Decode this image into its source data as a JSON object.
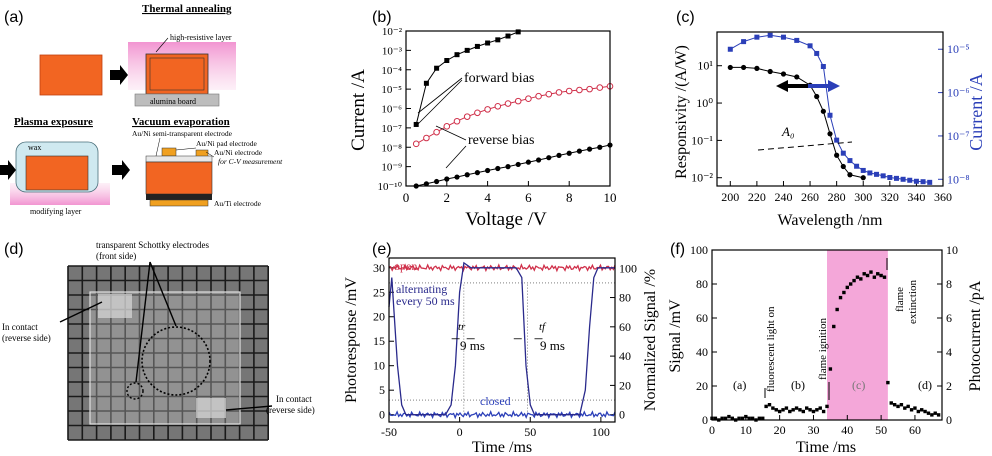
{
  "panels": {
    "a": {
      "label": "(a)",
      "thermal_annealing": "Thermal annealing",
      "high_resistive_layer": "high-resistive layer",
      "alumina_board": "alumina board",
      "plasma_exposure": "Plasma exposure",
      "wax": "wax",
      "modifying_layer": "modifying layer",
      "vacuum_evaporation": "Vacuum evaporation",
      "electrode1": "Au/Ni semi-transparent electrode",
      "electrode2": "Au/Ni pad electrode",
      "electrode3a": "Au/Ni electrode",
      "electrode3b": "for C-V measurement",
      "electrode4": "Au/Ti electrode"
    },
    "d": {
      "label": "(d)",
      "schottky_1": "transparent Schottky electrodes",
      "schottky_2": "(front side)",
      "contact_left_1": "In contact",
      "contact_left_2": "(reverse side)",
      "contact_right_1": "In contact",
      "contact_right_2": "(reverse side)"
    }
  },
  "colors": {
    "black": "#000000",
    "red": "#d0304a",
    "blue": "#2b3fb8",
    "navy": "#2a2a8c",
    "pink": "#f089cc",
    "orange": "#f26522"
  },
  "chart_data": [
    {
      "id": "b",
      "label": "(b)",
      "type": "scatter",
      "yscale": "log",
      "xlabel": "Voltage /V",
      "ylabel": "Current /A",
      "xlim": [
        0,
        10
      ],
      "ylim": [
        1e-10,
        0.01
      ],
      "xticks": [
        0,
        2,
        4,
        6,
        8,
        10
      ],
      "yticks": [
        "10⁻²",
        "10⁻³",
        "10⁻⁴",
        "10⁻⁵",
        "10⁻⁶",
        "10⁻⁷",
        "10⁻⁸",
        "10⁻⁹",
        "10⁻¹⁰"
      ],
      "annotations": [
        "forward bias",
        "reverse bias"
      ],
      "series": [
        {
          "name": "forward bias",
          "color": "#000000",
          "marker": "filled-square",
          "x": [
            0.5,
            1,
            1.5,
            2,
            2.5,
            3,
            3.5,
            4,
            4.5,
            5,
            5.5
          ],
          "y": [
            1.5e-07,
            2e-05,
            0.00012,
            0.0003,
            0.0006,
            0.001,
            0.0016,
            0.0024,
            0.0035,
            0.0055,
            0.009
          ]
        },
        {
          "name": "reverse bias (red)",
          "color": "#d0304a",
          "marker": "open-circle",
          "x": [
            0.5,
            1,
            1.5,
            2,
            2.5,
            3,
            3.5,
            4,
            4.5,
            5,
            5.5,
            6,
            6.5,
            7,
            7.5,
            8,
            8.5,
            9,
            9.5,
            10
          ],
          "y": [
            1.5e-08,
            3e-08,
            6e-08,
            1.2e-07,
            2.2e-07,
            3.8e-07,
            6e-07,
            9e-07,
            1.3e-06,
            1.8e-06,
            2.4e-06,
            3.2e-06,
            4.3e-06,
            5.5e-06,
            6.8e-06,
            8e-06,
            9e-06,
            1e-05,
            1.2e-05,
            1.4e-05
          ]
        },
        {
          "name": "reverse bias (black)",
          "color": "#000000",
          "marker": "filled-circle",
          "x": [
            0.5,
            1,
            1.5,
            2,
            2.5,
            3,
            3.5,
            4,
            4.5,
            5,
            5.5,
            6,
            6.5,
            7,
            7.5,
            8,
            8.5,
            9,
            9.5,
            10
          ],
          "y": [
            1e-10,
            1.3e-10,
            1.7e-10,
            2.3e-10,
            2.9e-10,
            3.8e-10,
            4.9e-10,
            6.3e-10,
            8e-10,
            1e-09,
            1.3e-09,
            1.7e-09,
            2.2e-09,
            2.9e-09,
            3.8e-09,
            4.9e-09,
            6.3e-09,
            8e-09,
            1e-08,
            1.3e-08
          ]
        }
      ]
    },
    {
      "id": "c",
      "label": "(c)",
      "type": "line",
      "yscale": "log",
      "xlabel": "Wavelength /nm",
      "ylabel": "Responsivity /(A/W)",
      "y2label": "Current /A",
      "xlim": [
        190,
        360
      ],
      "ylim": [
        0.006,
        80
      ],
      "y2lim": [
        7e-09,
        2.5e-05
      ],
      "xticks": [
        200,
        220,
        240,
        260,
        280,
        300,
        320,
        340,
        360
      ],
      "yticks": [
        "10¹",
        "10⁰",
        "10⁻¹",
        "10⁻²"
      ],
      "y2ticks": [
        "10⁻⁵",
        "10⁻⁶",
        "10⁻⁷",
        "10⁻⁸"
      ],
      "annotations": [
        "A₀"
      ],
      "series": [
        {
          "name": "responsivity",
          "axis": "left",
          "color": "#000000",
          "marker": "filled-circle",
          "x": [
            200,
            210,
            220,
            230,
            240,
            250,
            260,
            265,
            270,
            275,
            280,
            285,
            290,
            300
          ],
          "y": [
            9,
            9,
            8.5,
            7,
            6,
            5,
            3,
            1.5,
            0.6,
            0.15,
            0.04,
            0.02,
            0.012,
            0.01
          ]
        },
        {
          "name": "current",
          "axis": "right",
          "color": "#2b3fb8",
          "marker": "filled-square",
          "x": [
            200,
            210,
            220,
            230,
            240,
            250,
            260,
            265,
            270,
            275,
            280,
            285,
            290,
            295,
            300,
            305,
            310,
            315,
            320,
            325,
            330,
            335,
            340,
            345,
            350
          ],
          "y": [
            1e-05,
            1.5e-05,
            1.9e-05,
            2.1e-05,
            1.9e-05,
            1.6e-05,
            1.2e-05,
            8e-06,
            4e-06,
            3e-07,
            8e-08,
            4e-08,
            2.7e-08,
            2e-08,
            1.6e-08,
            1.4e-08,
            1.3e-08,
            1.2e-08,
            1.1e-08,
            1.05e-08,
            1e-08,
            9.5e-09,
            9e-09,
            8.8e-09,
            8.5e-09
          ]
        }
      ]
    },
    {
      "id": "e",
      "label": "(e)",
      "type": "line",
      "xlabel": "Time /ms",
      "ylabel": "Photoresponse /mV",
      "y2label": "Normalized Signal /%",
      "xlim": [
        -50,
        110
      ],
      "ylim": [
        -1.5,
        32
      ],
      "y2lim": [
        -5,
        107
      ],
      "xticks": [
        -50,
        0,
        50,
        100
      ],
      "yticks": [
        0,
        5,
        10,
        15,
        20,
        25,
        30
      ],
      "y2ticks": [
        0,
        20,
        40,
        60,
        80,
        100
      ],
      "annotations": [
        "open",
        "alternating",
        "every 50 ms",
        "closed",
        "tr",
        "tf",
        "9 ms",
        "9 ms"
      ],
      "series": [
        {
          "name": "open",
          "color": "#d0304a",
          "x": [
            -50,
            110
          ],
          "y": [
            30,
            30
          ]
        },
        {
          "name": "closed",
          "color": "#2b3fb8",
          "x": [
            -50,
            110
          ],
          "y": [
            0,
            0
          ]
        },
        {
          "name": "alternating",
          "color": "#2a2a8c",
          "x": [
            -50,
            -48,
            -44,
            -41,
            -38,
            -30,
            -10,
            -6,
            -3,
            0,
            3,
            8,
            40,
            44,
            47,
            50,
            53,
            60,
            85,
            89,
            92,
            95,
            98,
            110
          ],
          "y": [
            22,
            28,
            10,
            2,
            0,
            0,
            0,
            2,
            10,
            25,
            31,
            30,
            30,
            28,
            10,
            2,
            0,
            0,
            0,
            5,
            18,
            28,
            30,
            30
          ]
        }
      ]
    },
    {
      "id": "f",
      "label": "(f)",
      "type": "scatter",
      "xlabel": "Time /ms",
      "ylabel": "Signal /mV",
      "y2label": "Photocurrent /pA",
      "xlim": [
        0,
        68
      ],
      "ylim": [
        0,
        100
      ],
      "y2lim": [
        0,
        10
      ],
      "xticks": [
        0,
        10,
        20,
        30,
        40,
        50,
        60
      ],
      "yticks": [
        0,
        20,
        40,
        60,
        80,
        100
      ],
      "y2ticks": [
        0,
        2,
        4,
        6,
        8,
        10
      ],
      "shaded_region": [
        34,
        52
      ],
      "annotations": [
        "(a)",
        "(b)",
        "(c)",
        "(d)",
        "fluorescent light on",
        "flame ignition",
        "flame",
        "extinction"
      ],
      "series": [
        {
          "name": "signal",
          "color": "#000000",
          "marker": "filled-square",
          "x": [
            0,
            1,
            2,
            3,
            4,
            5,
            6,
            7,
            8,
            9,
            10,
            11,
            12,
            13,
            14,
            15,
            16,
            17,
            18,
            19,
            20,
            21,
            22,
            23,
            24,
            25,
            26,
            27,
            28,
            29,
            30,
            31,
            32,
            33,
            34,
            35,
            36,
            37,
            38,
            39,
            40,
            41,
            42,
            43,
            44,
            45,
            46,
            47,
            48,
            49,
            50,
            51,
            52,
            53,
            54,
            55,
            56,
            57,
            58,
            59,
            60,
            61,
            62,
            63,
            64,
            65,
            66,
            67
          ],
          "y": [
            1,
            1,
            0,
            1,
            1,
            2,
            1,
            0,
            1,
            1,
            2,
            1,
            1,
            0,
            1,
            1,
            8,
            9,
            7,
            6,
            5,
            6,
            7,
            5,
            6,
            7,
            6,
            5,
            7,
            6,
            5,
            6,
            7,
            5,
            8,
            30,
            55,
            65,
            72,
            75,
            78,
            80,
            82,
            84,
            83,
            86,
            85,
            87,
            84,
            86,
            85,
            84,
            22,
            10,
            9,
            8,
            9,
            7,
            8,
            6,
            7,
            5,
            6,
            5,
            4,
            3,
            4,
            3
          ]
        }
      ]
    }
  ]
}
